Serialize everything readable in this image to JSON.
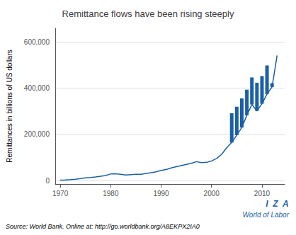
{
  "chart_data": {
    "type": "line",
    "title": "Remittance flows have been rising steeply",
    "ylabel": "Remittances in billions of US dollars",
    "annotations": [
      "Source: World Bank. Online at: http://go.worldbank.org/A8EKPX2IA0",
      "I  Z  A",
      "World of Labor"
    ],
    "color": "#1a5fa8",
    "x": [
      1970,
      1971,
      1972,
      1973,
      1974,
      1975,
      1976,
      1977,
      1978,
      1979,
      1980,
      1981,
      1982,
      1983,
      1984,
      1985,
      1986,
      1987,
      1988,
      1989,
      1990,
      1991,
      1992,
      1993,
      1994,
      1995,
      1996,
      1997,
      1998,
      1999,
      2000,
      2001,
      2002,
      2003,
      2004,
      2005,
      2006,
      2007,
      2008,
      2009,
      2010,
      2011,
      2012,
      2013
    ],
    "values": [
      2200,
      2900,
      3900,
      5800,
      8500,
      11500,
      13500,
      16000,
      19000,
      22000,
      29000,
      29500,
      27000,
      24000,
      26000,
      27500,
      27000,
      31000,
      34000,
      38000,
      44000,
      48000,
      55000,
      60000,
      65000,
      70000,
      75000,
      82000,
      78000,
      79000,
      85000,
      96000,
      114000,
      142000,
      165000,
      197000,
      230000,
      283000,
      330000,
      302000,
      333000,
      375000,
      406000,
      542000
    ],
    "segments": [
      {
        "x": 2004,
        "low": 165000,
        "high": 292000
      },
      {
        "x": 2005,
        "low": 197000,
        "high": 320000
      },
      {
        "x": 2006,
        "low": 230000,
        "high": 356000
      },
      {
        "x": 2007,
        "low": 283000,
        "high": 394000
      },
      {
        "x": 2008,
        "low": 330000,
        "high": 447000
      },
      {
        "x": 2009,
        "low": 302000,
        "high": 424000
      },
      {
        "x": 2010,
        "low": 333000,
        "high": 453000
      },
      {
        "x": 2011,
        "low": 375000,
        "high": 499000
      },
      {
        "x": 2012,
        "low": 406000,
        "high": 422000
      }
    ],
    "xlim": [
      1969,
      2014.5
    ],
    "xticks": [
      1970,
      1980,
      1990,
      2000,
      2010
    ],
    "ylim": [
      -15000,
      660000
    ],
    "yticks": [
      0,
      {
        "value": 200000,
        "label": "200,000"
      },
      {
        "value": 400000,
        "label": "400,000"
      },
      {
        "value": 600000,
        "label": "600,000"
      }
    ],
    "grid": true
  }
}
